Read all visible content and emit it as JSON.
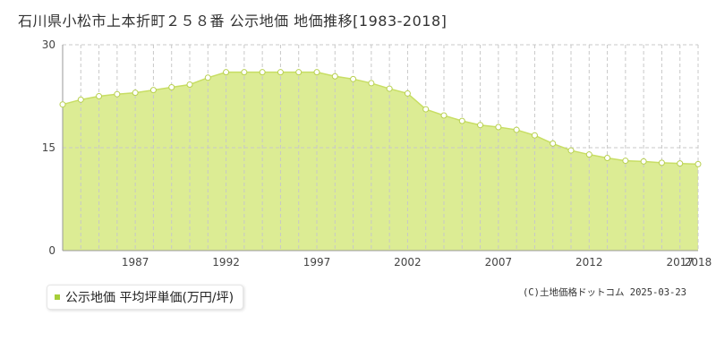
{
  "title": "石川県小松市上本折町２５８番 公示地価 地価推移[1983-2018]",
  "legend": {
    "label": "公示地価 平均坪単価(万円/坪)"
  },
  "credit": "(C)土地価格ドットコム 2025-03-23",
  "colors": {
    "area_fill": "#dcec94",
    "line": "#c8de64",
    "marker_fill": "#ffffff",
    "marker_stroke": "#b8d050",
    "legend_swatch": "#a6ce39",
    "grid_dash": "#c8c8c8",
    "axis": "#999999"
  },
  "chart_data": {
    "type": "area",
    "title": "",
    "xlabel": "",
    "ylabel": "",
    "x": [
      1983,
      1984,
      1985,
      1986,
      1987,
      1988,
      1989,
      1990,
      1991,
      1992,
      1993,
      1994,
      1995,
      1996,
      1997,
      1998,
      1999,
      2000,
      2001,
      2002,
      2003,
      2004,
      2005,
      2006,
      2007,
      2008,
      2009,
      2010,
      2011,
      2012,
      2013,
      2014,
      2015,
      2016,
      2017,
      2018
    ],
    "series": [
      {
        "values": [
          21.3,
          22.0,
          22.5,
          22.8,
          23.0,
          23.4,
          23.8,
          24.2,
          25.2,
          26.0,
          26.0,
          26.0,
          26.0,
          26.0,
          26.0,
          25.4,
          25.0,
          24.4,
          23.6,
          22.9,
          20.6,
          19.7,
          18.9,
          18.3,
          18.0,
          17.6,
          16.8,
          15.6,
          14.6,
          14.0,
          13.5,
          13.1,
          13.0,
          12.8,
          12.7,
          12.6
        ]
      }
    ],
    "ylim": [
      0,
      30
    ],
    "yticks": [
      0,
      15,
      30
    ],
    "xtick_labels": [
      {
        "x": 1987,
        "label": "1987"
      },
      {
        "x": 1992,
        "label": "1992"
      },
      {
        "x": 1997,
        "label": "1997"
      },
      {
        "x": 2002,
        "label": "2002"
      },
      {
        "x": 2007,
        "label": "2007"
      },
      {
        "x": 2012,
        "label": "2012"
      },
      {
        "x": 2017,
        "label": "2017"
      },
      {
        "x": 2018,
        "label": "2018"
      }
    ],
    "grid": true,
    "legend_position": "bottom-left"
  }
}
